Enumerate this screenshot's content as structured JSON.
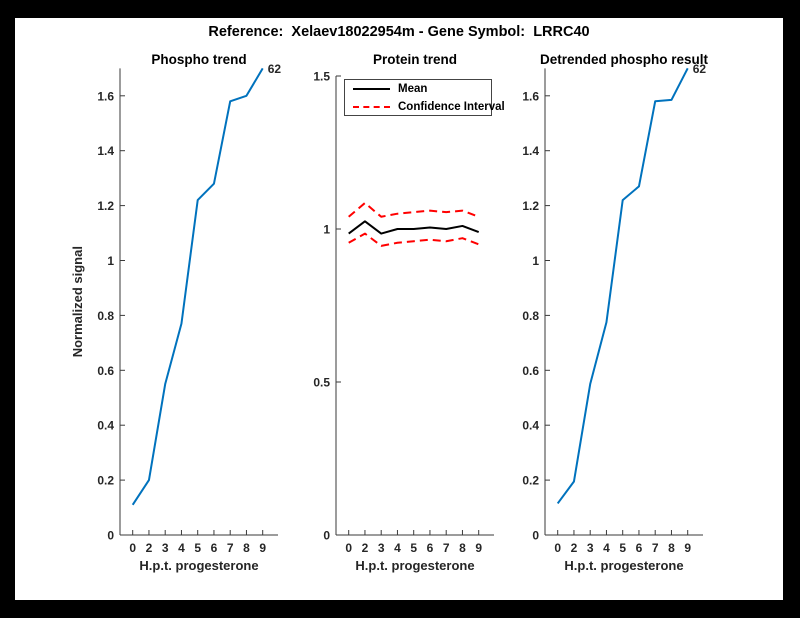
{
  "title": "Reference:  Xelaev18022954m - Gene Symbol:  LRRC40",
  "colors": {
    "matlab_blue": "#0072BD",
    "ci_red": "#ff0000",
    "mean_black": "#000000",
    "axis": "#3a3a3a",
    "figure_background": "#ffffff",
    "page_border": "#000000"
  },
  "chart_data": [
    {
      "type": "line",
      "title": "Phospho trend",
      "xlabel": "H.p.t. progesterone",
      "ylabel": "Normalized signal",
      "x_ticklabels": [
        "0",
        "2",
        "3",
        "4",
        "5",
        "6",
        "7",
        "8",
        "9"
      ],
      "ylim": [
        0,
        1.7
      ],
      "yticks": [
        0,
        0.2,
        0.4,
        0.6,
        0.8,
        1,
        1.2,
        1.4,
        1.6
      ],
      "ytick_labels": [
        "0",
        "0.2",
        "0.4",
        "0.6",
        "0.8",
        "1",
        "1.2",
        "1.4",
        "1.6"
      ],
      "grid": false,
      "legend": null,
      "end_annotation": "62",
      "series": [
        {
          "name": "Phospho trend",
          "color": "#0072BD",
          "dash": null,
          "values": [
            0.11,
            0.2,
            0.55,
            0.77,
            1.22,
            1.28,
            1.58,
            1.6,
            1.7
          ]
        }
      ]
    },
    {
      "type": "line",
      "title": "Protein trend",
      "xlabel": "H.p.t. progesterone",
      "ylabel": null,
      "x_ticklabels": [
        "0",
        "2",
        "3",
        "4",
        "5",
        "6",
        "7",
        "8",
        "9"
      ],
      "ylim": [
        0,
        1.5
      ],
      "yticks": [
        0,
        0.5,
        1,
        1.5
      ],
      "ytick_labels": [
        "0",
        "0.5",
        "1",
        "1.5"
      ],
      "grid": false,
      "legend": {
        "position": "top-left",
        "entries": [
          {
            "label": "Mean"
          },
          {
            "label": "Confidence Interval"
          }
        ]
      },
      "end_annotation": null,
      "series": [
        {
          "name": "Mean",
          "color": "#000000",
          "dash": null,
          "values": [
            0.985,
            1.025,
            0.985,
            1.0,
            1.0,
            1.005,
            1.0,
            1.01,
            0.99
          ]
        },
        {
          "name": "Confidence Interval upper",
          "color": "#ff0000",
          "dash": "8 5",
          "values": [
            1.04,
            1.085,
            1.04,
            1.05,
            1.055,
            1.06,
            1.055,
            1.06,
            1.04
          ]
        },
        {
          "name": "Confidence Interval lower",
          "color": "#ff0000",
          "dash": "8 5",
          "values": [
            0.955,
            0.985,
            0.945,
            0.955,
            0.96,
            0.965,
            0.96,
            0.97,
            0.95
          ]
        }
      ]
    },
    {
      "type": "line",
      "title": "Detrended phospho result",
      "xlabel": "H.p.t. progesterone",
      "ylabel": null,
      "x_ticklabels": [
        "0",
        "2",
        "3",
        "4",
        "5",
        "6",
        "7",
        "8",
        "9"
      ],
      "ylim": [
        0,
        1.7
      ],
      "yticks": [
        0,
        0.2,
        0.4,
        0.6,
        0.8,
        1,
        1.2,
        1.4,
        1.6
      ],
      "ytick_labels": [
        "0",
        "0.2",
        "0.4",
        "0.6",
        "0.8",
        "1",
        "1.2",
        "1.4",
        "1.6"
      ],
      "grid": false,
      "legend": null,
      "end_annotation": "62",
      "series": [
        {
          "name": "Detrended phospho",
          "color": "#0072BD",
          "dash": null,
          "values": [
            0.115,
            0.195,
            0.55,
            0.775,
            1.22,
            1.27,
            1.58,
            1.585,
            1.7
          ]
        }
      ]
    }
  ]
}
